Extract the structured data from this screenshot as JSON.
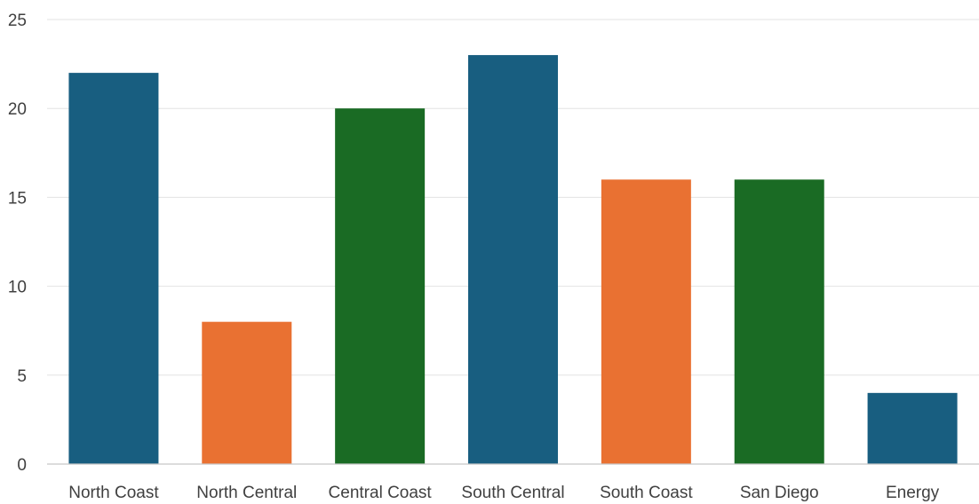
{
  "chart_data": {
    "type": "bar",
    "title": "",
    "xlabel": "",
    "ylabel": "",
    "categories": [
      "North Coast",
      "North Central",
      "Central Coast",
      "South Central",
      "South Coast",
      "San Diego",
      "Energy"
    ],
    "values": [
      22,
      8,
      20,
      23,
      16,
      16,
      4
    ],
    "bar_colors": [
      "#185e80",
      "#e97132",
      "#1a6b24",
      "#185e80",
      "#e97132",
      "#1a6b24",
      "#185e80"
    ],
    "ylim": [
      0,
      25
    ],
    "y_ticks": [
      0,
      5,
      10,
      15,
      20,
      25
    ],
    "grid": true,
    "legend": "none"
  }
}
